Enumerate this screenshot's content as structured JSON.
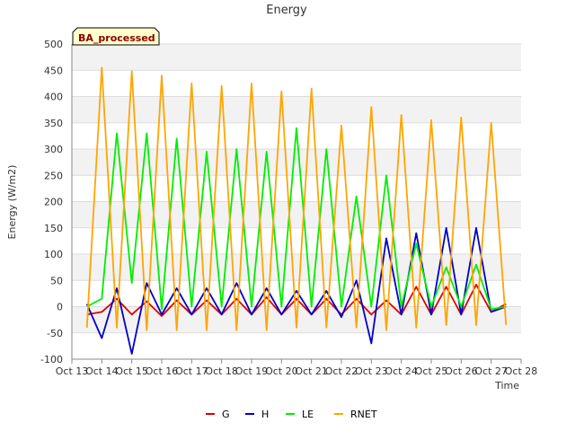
{
  "chart_data": {
    "type": "line",
    "title": "Energy",
    "badge": "BA_processed",
    "xlabel": "Time",
    "ylabel": "Energy (W/m2)",
    "xlim": [
      "Oct 13",
      "Oct 28"
    ],
    "ylim": [
      -100,
      500
    ],
    "x_ticks": [
      "Oct 13",
      "Oct 14",
      "Oct 15",
      "Oct 16",
      "Oct 17",
      "Oct 18",
      "Oct 19",
      "Oct 20",
      "Oct 21",
      "Oct 22",
      "Oct 23",
      "Oct 24",
      "Oct 25",
      "Oct 26",
      "Oct 27",
      "Oct 28"
    ],
    "y_ticks": [
      -100,
      -50,
      0,
      50,
      100,
      150,
      200,
      250,
      300,
      350,
      400,
      450,
      500
    ],
    "grid": true,
    "legend_position": "bottom",
    "x": [
      "Oct 13 12:00",
      "Oct 14 00:00",
      "Oct 14 12:00",
      "Oct 15 00:00",
      "Oct 15 12:00",
      "Oct 16 00:00",
      "Oct 16 12:00",
      "Oct 17 00:00",
      "Oct 17 12:00",
      "Oct 18 00:00",
      "Oct 18 12:00",
      "Oct 19 00:00",
      "Oct 19 12:00",
      "Oct 20 00:00",
      "Oct 20 12:00",
      "Oct 21 00:00",
      "Oct 21 12:00",
      "Oct 22 00:00",
      "Oct 22 12:00",
      "Oct 23 00:00",
      "Oct 23 12:00",
      "Oct 24 00:00",
      "Oct 24 12:00",
      "Oct 25 00:00",
      "Oct 25 12:00",
      "Oct 26 00:00",
      "Oct 26 12:00",
      "Oct 27 00:00",
      "Oct 27 12:00"
    ],
    "series": [
      {
        "name": "G",
        "color": "#dd0000",
        "values": [
          -15,
          -10,
          15,
          -15,
          10,
          -18,
          12,
          -15,
          12,
          -15,
          15,
          -15,
          18,
          -15,
          15,
          -15,
          15,
          -15,
          15,
          -15,
          12,
          -15,
          38,
          -15,
          38,
          -15,
          42,
          -10,
          5
        ]
      },
      {
        "name": "H",
        "color": "#0000cc",
        "values": [
          5,
          -60,
          35,
          -90,
          45,
          -15,
          35,
          -15,
          35,
          -15,
          45,
          -15,
          35,
          -15,
          30,
          -15,
          30,
          -20,
          50,
          -70,
          130,
          -15,
          140,
          -15,
          150,
          -15,
          150,
          -10,
          0
        ]
      },
      {
        "name": "LE",
        "color": "#00ee00",
        "values": [
          0,
          15,
          330,
          45,
          330,
          -5,
          320,
          0,
          295,
          0,
          300,
          0,
          295,
          0,
          340,
          0,
          300,
          0,
          210,
          0,
          250,
          0,
          120,
          0,
          75,
          0,
          80,
          -5,
          0
        ]
      },
      {
        "name": "RNET",
        "color": "#ffa500",
        "values": [
          -40,
          455,
          -40,
          448,
          -45,
          440,
          -45,
          425,
          -45,
          420,
          -45,
          425,
          -45,
          410,
          -40,
          415,
          -40,
          345,
          -40,
          380,
          -45,
          365,
          -40,
          355,
          -35,
          360,
          -35,
          350,
          -35
        ]
      }
    ]
  }
}
